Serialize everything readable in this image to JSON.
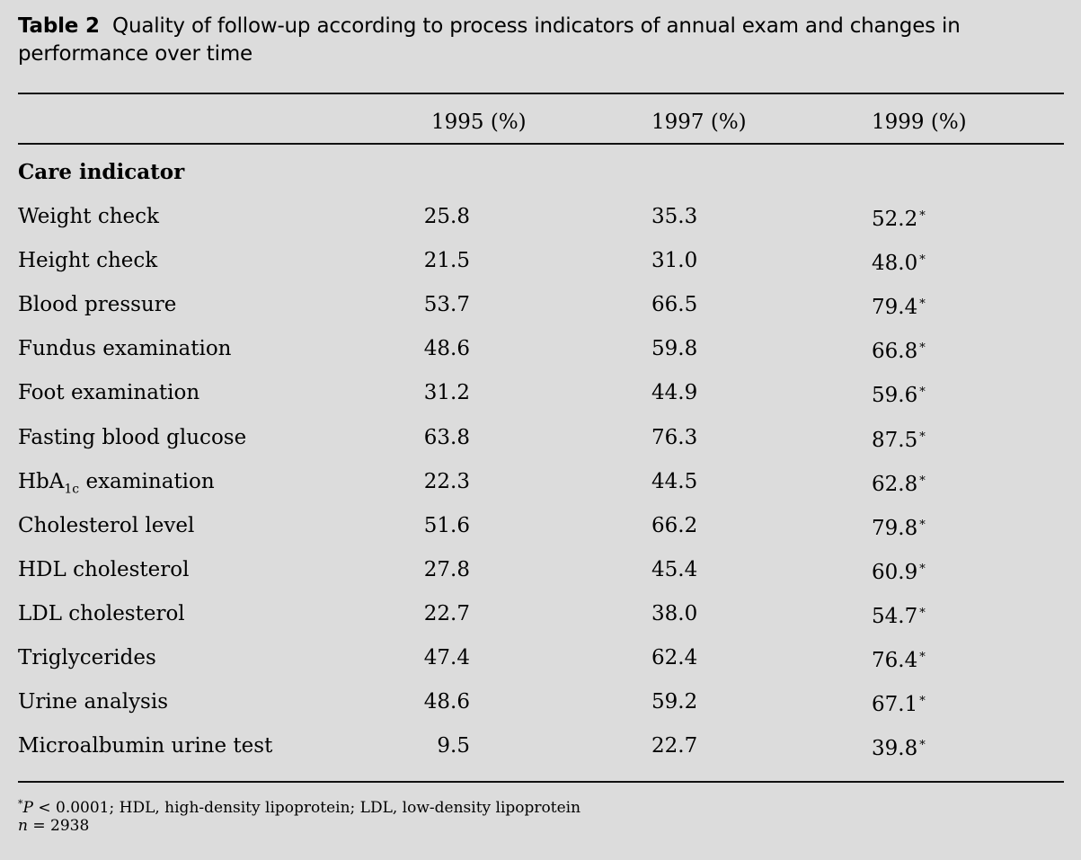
{
  "caption": {
    "label": "Table 2",
    "text": "Quality of follow-up according to process indicators of annual exam and changes in performance over time"
  },
  "columns": {
    "col_1995": "1995 (%)",
    "col_1997": "1997 (%)",
    "col_1999": "1999 (%)"
  },
  "section_heading": "Care indicator",
  "significance_marker": "*",
  "rows": [
    {
      "label": "Weight check",
      "v1995": "25.8",
      "v1997": "35.3",
      "v1999": "52.2"
    },
    {
      "label": "Height check",
      "v1995": "21.5",
      "v1997": "31.0",
      "v1999": "48.0"
    },
    {
      "label": "Blood pressure",
      "v1995": "53.7",
      "v1997": "66.5",
      "v1999": "79.4"
    },
    {
      "label": "Fundus examination",
      "v1995": "48.6",
      "v1997": "59.8",
      "v1999": "66.8"
    },
    {
      "label": "Foot examination",
      "v1995": "31.2",
      "v1997": "44.9",
      "v1999": "59.6"
    },
    {
      "label": "Fasting blood glucose",
      "v1995": "63.8",
      "v1997": "76.3",
      "v1999": "87.5"
    },
    {
      "label_pre": "HbA",
      "label_sub": "1c",
      "label_post": " examination",
      "v1995": "22.3",
      "v1997": "44.5",
      "v1999": "62.8"
    },
    {
      "label": "Cholesterol level",
      "v1995": "51.6",
      "v1997": "66.2",
      "v1999": "79.8"
    },
    {
      "label": "HDL cholesterol",
      "v1995": "27.8",
      "v1997": "45.4",
      "v1999": "60.9"
    },
    {
      "label": "LDL cholesterol",
      "v1995": "22.7",
      "v1997": "38.0",
      "v1999": "54.7"
    },
    {
      "label": "Triglycerides",
      "v1995": "47.4",
      "v1997": "62.4",
      "v1999": "76.4"
    },
    {
      "label": "Urine analysis",
      "v1995": "48.6",
      "v1997": "59.2",
      "v1999": "67.1"
    },
    {
      "label": "Microalbumin urine test",
      "v1995": "9.5",
      "v1997": "22.7",
      "v1999": "39.8"
    }
  ],
  "footnotes": {
    "marker": "*",
    "p_symbol": "P",
    "p_condition": " < 0.0001; HDL, high-density lipoprotein; LDL, low-density lipoprotein",
    "n_symbol": "n",
    "n_value": " = 2938"
  }
}
